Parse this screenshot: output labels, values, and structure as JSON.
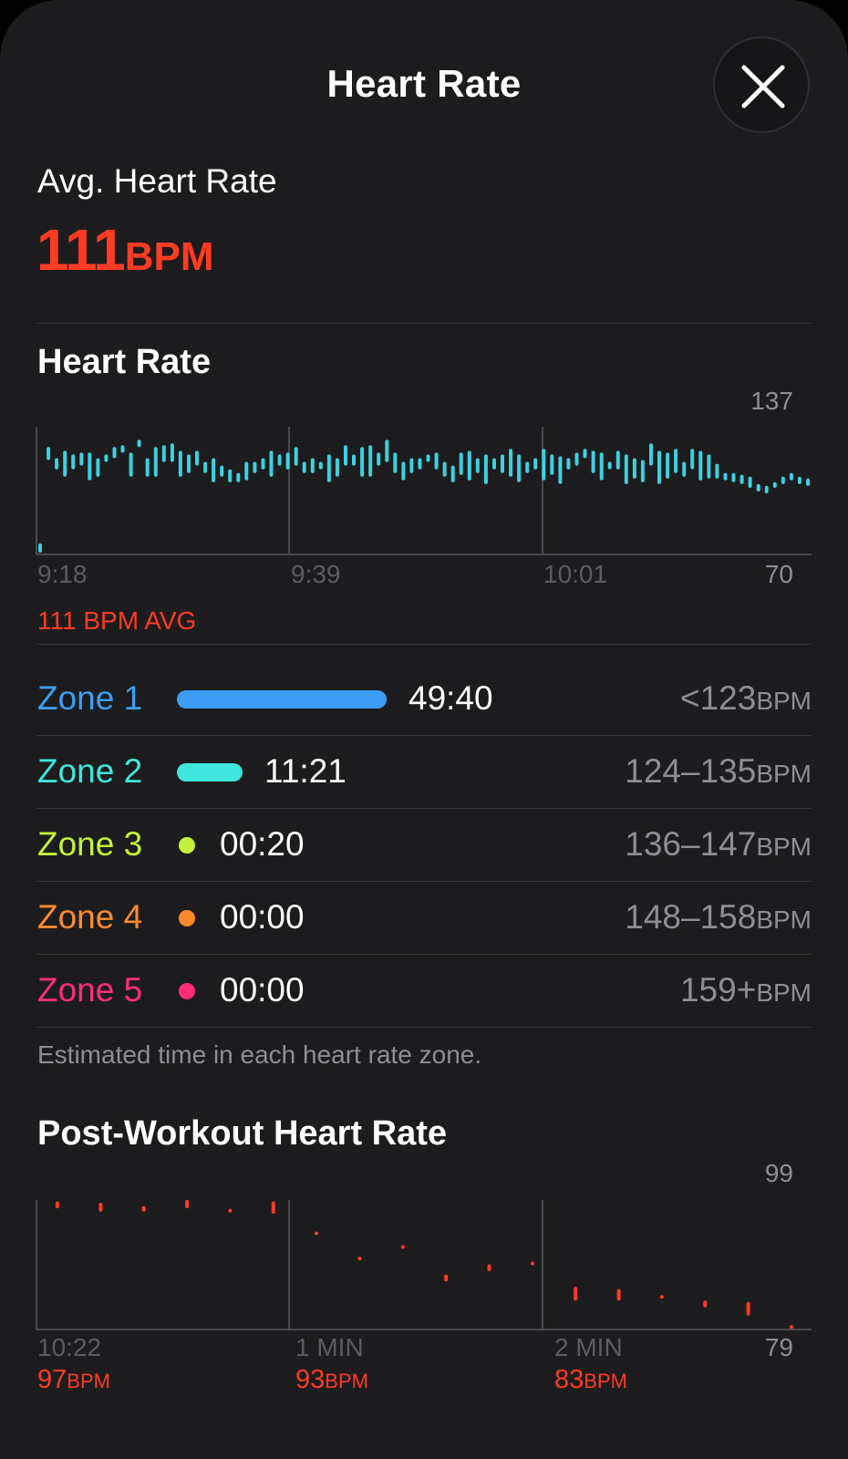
{
  "header": {
    "title": "Heart Rate",
    "close_icon": "close-icon"
  },
  "summary": {
    "label": "Avg. Heart Rate",
    "value": "111",
    "unit": "BPM"
  },
  "heart_rate": {
    "title": "Heart Rate",
    "max_label": "137",
    "min_label": "70",
    "x_labels": [
      "9:18",
      "9:39",
      "10:01"
    ],
    "avg_caption": "111 BPM AVG"
  },
  "zones": [
    {
      "name": "Zone 1",
      "time": "49:40",
      "range": "<123",
      "unit": "BPM",
      "color": "#3c9df2"
    },
    {
      "name": "Zone 2",
      "time": "11:21",
      "range": "124–135",
      "unit": "BPM",
      "color": "#3ee6dd"
    },
    {
      "name": "Zone 3",
      "time": "00:20",
      "range": "136–147",
      "unit": "BPM",
      "color": "#c2f23a"
    },
    {
      "name": "Zone 4",
      "time": "00:00",
      "range": "148–158",
      "unit": "BPM",
      "color": "#ff8a2a"
    },
    {
      "name": "Zone 5",
      "time": "00:00",
      "range": "159+",
      "unit": "BPM",
      "color": "#ff2d7a"
    }
  ],
  "zone_note": "Estimated time in each heart rate zone.",
  "post_workout": {
    "title": "Post-Workout Heart Rate",
    "max_label": "99",
    "min_label": "79",
    "x_labels": [
      "10:22",
      "1 MIN",
      "2 MIN"
    ],
    "bpm_values": [
      {
        "value": "97",
        "unit": "BPM"
      },
      {
        "value": "93",
        "unit": "BPM"
      },
      {
        "value": "83",
        "unit": "BPM"
      }
    ]
  },
  "chart_data": [
    {
      "type": "bar",
      "title": "Heart Rate",
      "color": "#3ed0e0",
      "ylim": [
        70,
        137
      ],
      "x_ticks": [
        "9:18",
        "9:39",
        "10:01"
      ],
      "grid": true,
      "series": [
        {
          "values": [
            [
              70,
              75
            ],
            [
              120,
              127
            ],
            [
              115,
              121
            ],
            [
              111,
              125
            ],
            [
              115,
              123
            ],
            [
              117,
              124
            ],
            [
              109,
              124
            ],
            [
              111,
              121
            ],
            [
              119,
              123
            ],
            [
              121,
              127
            ],
            [
              124,
              128
            ],
            [
              111,
              124
            ],
            [
              127,
              131
            ],
            [
              111,
              121
            ],
            [
              111,
              127
            ],
            [
              119,
              128
            ],
            [
              119,
              129
            ],
            [
              111,
              125
            ],
            [
              113,
              123
            ],
            [
              117,
              125
            ],
            [
              113,
              119
            ],
            [
              108,
              121
            ],
            [
              111,
              117
            ],
            [
              108,
              115
            ],
            [
              108,
              113
            ],
            [
              109,
              119
            ],
            [
              113,
              119
            ],
            [
              115,
              121
            ],
            [
              111,
              125
            ],
            [
              117,
              123
            ],
            [
              115,
              124
            ],
            [
              117,
              127
            ],
            [
              113,
              119
            ],
            [
              113,
              121
            ],
            [
              115,
              119
            ],
            [
              108,
              123
            ],
            [
              111,
              121
            ],
            [
              117,
              128
            ],
            [
              117,
              123
            ],
            [
              111,
              127
            ],
            [
              111,
              128
            ],
            [
              117,
              124
            ],
            [
              119,
              131
            ],
            [
              113,
              124
            ],
            [
              109,
              119
            ],
            [
              113,
              121
            ],
            [
              115,
              121
            ],
            [
              119,
              123
            ],
            [
              115,
              124
            ],
            [
              111,
              119
            ],
            [
              108,
              117
            ],
            [
              112,
              124
            ],
            [
              109,
              125
            ],
            [
              113,
              121
            ],
            [
              107,
              123
            ],
            [
              115,
              121
            ],
            [
              113,
              123
            ],
            [
              111,
              126
            ],
            [
              108,
              123
            ],
            [
              113,
              119
            ],
            [
              115,
              121
            ],
            [
              109,
              126
            ],
            [
              112,
              123
            ],
            [
              107,
              122
            ],
            [
              115,
              121
            ],
            [
              117,
              124
            ],
            [
              121,
              126
            ],
            [
              113,
              125
            ],
            [
              109,
              124
            ],
            [
              115,
              119
            ],
            [
              115,
              125
            ],
            [
              107,
              123
            ],
            [
              110,
              121
            ],
            [
              108,
              120
            ],
            [
              117,
              129
            ],
            [
              107,
              125
            ],
            [
              110,
              124
            ],
            [
              113,
              126
            ],
            [
              111,
              119
            ],
            [
              115,
              126
            ],
            [
              109,
              125
            ],
            [
              110,
              123
            ],
            [
              110,
              118
            ],
            [
              109,
              113
            ],
            [
              108,
              113
            ],
            [
              107,
              112
            ],
            [
              105,
              111
            ],
            [
              103,
              107
            ],
            [
              102,
              106
            ],
            [
              105,
              108
            ],
            [
              107,
              111
            ],
            [
              109,
              113
            ],
            [
              107,
              111
            ],
            [
              106,
              110
            ]
          ]
        }
      ]
    },
    {
      "type": "bar",
      "title": "Post-Workout Heart Rate",
      "color": "#ff3b24",
      "ylim": [
        79,
        99
      ],
      "x_ticks": [
        "10:22",
        "1 MIN",
        "2 MIN"
      ],
      "grid": true,
      "series": [
        {
          "values": [
            [
              97,
              98
            ],
            [
              96.5,
              97.8
            ],
            [
              96.5,
              97.3
            ],
            [
              97,
              98.2
            ],
            [
              96.5,
              96.9
            ],
            [
              96.2,
              98
            ],
            [
              93.2,
              93.6
            ],
            [
              89.5,
              89.9
            ],
            [
              91.2,
              91.6
            ],
            [
              86.3,
              87.3
            ],
            [
              87.8,
              88.8
            ],
            [
              88.8,
              89.2
            ],
            [
              83.5,
              85.5
            ],
            [
              83.5,
              85.2
            ],
            [
              83.9,
              84.3
            ],
            [
              82.5,
              83.5
            ],
            [
              81.3,
              83.3
            ],
            [
              79.5,
              79.9
            ]
          ]
        }
      ]
    }
  ]
}
